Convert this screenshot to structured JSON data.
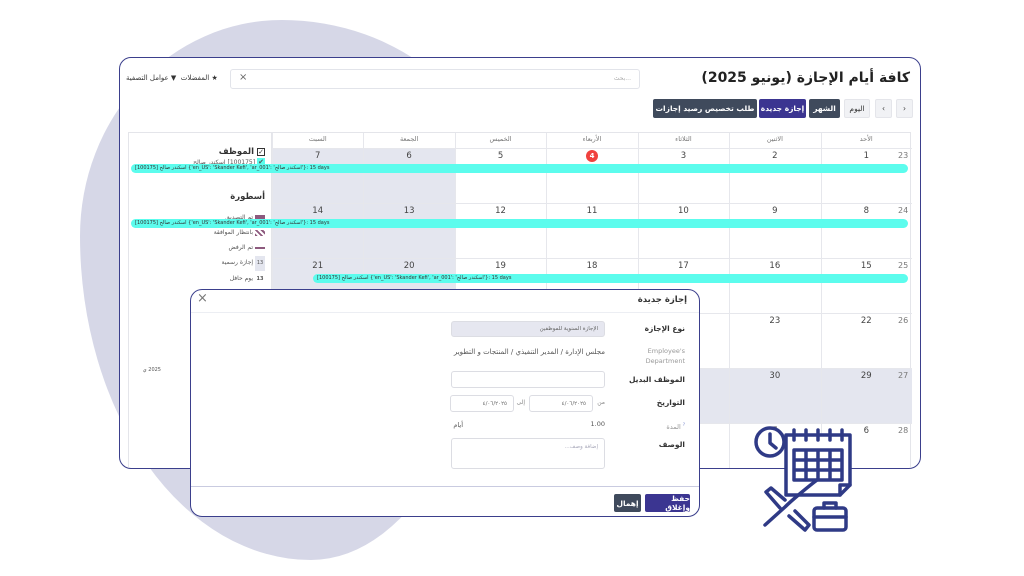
{
  "title": "كافة أيام الإجازة (يونيو 2025)",
  "search": {
    "placeholder": "بحث...",
    "clear": "×"
  },
  "filters": {
    "favorites": "★ المفضلات",
    "filters": "▼ عوامل التصفية"
  },
  "toolbar": {
    "prev": "‹",
    "next": "›",
    "today": "اليوم",
    "month": "الشهر",
    "new_leave": "إجازة جديدة",
    "allocation": "طلب تخصيص رصيد إجازات"
  },
  "days": [
    "الأحد",
    "الاثنين",
    "الثلاثاء",
    "الأربعاء",
    "الخميس",
    "الجمعة",
    "السبت"
  ],
  "weeks": [
    {
      "num": "23",
      "dates": [
        "1",
        "2",
        "3",
        "4",
        "5",
        "6",
        "7"
      ]
    },
    {
      "num": "24",
      "dates": [
        "8",
        "9",
        "10",
        "11",
        "12",
        "13",
        "14"
      ]
    },
    {
      "num": "25",
      "dates": [
        "15",
        "16",
        "17",
        "18",
        "19",
        "20",
        "21"
      ]
    },
    {
      "num": "26",
      "dates": [
        "22",
        "23",
        "",
        "",
        "",
        "",
        ""
      ]
    },
    {
      "num": "27",
      "dates": [
        "29",
        "30",
        "",
        "",
        "",
        "",
        ""
      ]
    },
    {
      "num": "28",
      "dates": [
        "6",
        "7",
        "",
        "",
        "",
        "",
        ""
      ]
    }
  ],
  "event_label": "[100175] اسكندر صالح {'en_US': 'Skander Kefi', 'ar_001': 'اسكندر صالح'}: 15 days",
  "sidebar": {
    "employee_heading": "الموظف",
    "employee": "[100175] اسكندر صالح",
    "legend_heading": "أسطورة",
    "legend": [
      "تم التصديق",
      "بانتظار الموافقة",
      "تم الرفض",
      "إجازة رسمية",
      "يوم حافل"
    ],
    "legend_num": "13",
    "partial": "2025 ي"
  },
  "modal": {
    "title": "إجازة جديدة",
    "close": "×",
    "leave_type_label": "نوع الإجازة",
    "leave_type": "الإجازة السنوية للموظفين",
    "dept_label": "Employee's Department",
    "dept": "مجلس الإدارة / المدير التنفيذي / المنتجات و التطوير",
    "substitute_label": "الموظف البديل",
    "dates_label": "التواريخ",
    "from": "من",
    "to": "إلى",
    "date_from": "٤/٠٦/٢٠٢٥",
    "date_to": "٤/٠٦/٢٠٢٥",
    "duration_label": "المدة",
    "help": "?",
    "duration": "1.00",
    "days_unit": "أيام",
    "desc_label": "الوصف",
    "desc_placeholder": "إضافة وصف...",
    "save": "حفظ وإغلاق",
    "discard": "إهمال"
  },
  "colors": {
    "accent": "#3b3591",
    "event": "#5cfced",
    "today": "#f0413e",
    "dark": "#3f4a5c"
  }
}
